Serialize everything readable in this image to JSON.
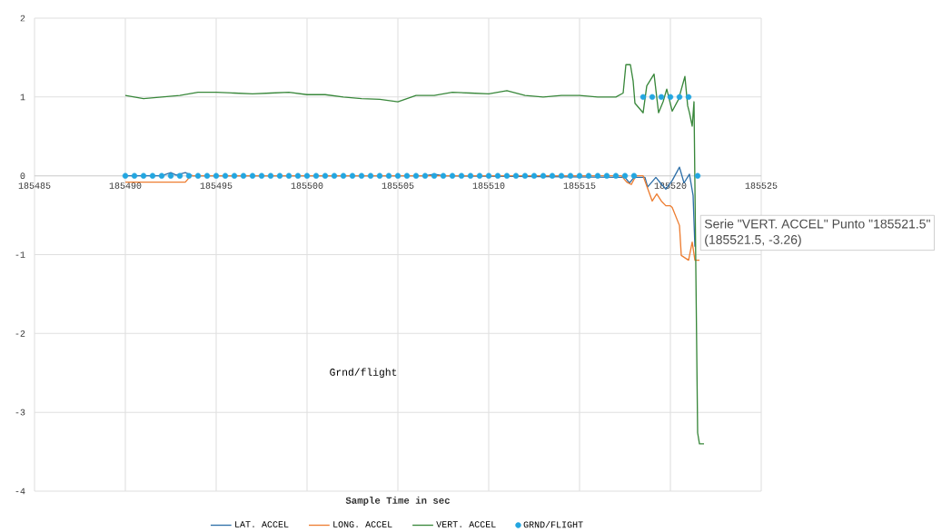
{
  "chart_data": {
    "type": "line",
    "xlabel": "Sample Time in sec",
    "xlim": [
      185485,
      185525
    ],
    "xticks": [
      185485,
      185490,
      185495,
      185500,
      185505,
      185510,
      185515,
      185520,
      185525
    ],
    "ylim": [
      -4,
      2
    ],
    "yticks": [
      -4,
      -3,
      -2,
      -1,
      0,
      1,
      2
    ],
    "grid": true,
    "legend": "bottom",
    "annotations": [
      "Grnd/flight",
      "Serie \"VERT. ACCEL\" Punto \"185521.5\"",
      "(185521.5, -3.26)"
    ],
    "series": [
      {
        "name": "LAT. ACCEL",
        "color": "#2e6fa8",
        "x": [
          185490,
          185492,
          185492.5,
          185492.8,
          185493.3,
          185493.7,
          185506.5,
          185507,
          185507.5,
          185517.5,
          185517.75,
          185518,
          185518.6,
          185518.75,
          185519.2,
          185519.45,
          185519.75,
          185520.1,
          185520.5,
          185520.75,
          185521.05,
          185521.25,
          185521.35
        ],
        "values": [
          0,
          0,
          0.04,
          0.01,
          0.04,
          0,
          0,
          0.02,
          0,
          -0.02,
          -0.09,
          -0.02,
          -0.02,
          -0.14,
          -0.02,
          -0.09,
          -0.17,
          -0.06,
          0.11,
          -0.09,
          0.02,
          -0.25,
          -0.9
        ]
      },
      {
        "name": "LONG. ACCEL",
        "color": "#ed7d31",
        "x": [
          185490,
          185493.3,
          185493.6,
          185517.3,
          185517.6,
          185517.85,
          185518.1,
          185518.5,
          185519,
          185519.25,
          185519.5,
          185519.75,
          185520,
          185520.1,
          185520.5,
          185520.6,
          185521,
          185521.2,
          185521.35,
          185521.6
        ],
        "values": [
          -0.08,
          -0.08,
          0,
          0,
          -0.08,
          -0.11,
          0,
          0,
          -0.32,
          -0.23,
          -0.32,
          -0.38,
          -0.38,
          -0.4,
          -0.63,
          -1.01,
          -1.07,
          -0.84,
          -1.07,
          -1.07
        ]
      },
      {
        "name": "VERT. ACCEL",
        "color": "#38873a",
        "x": [
          185490,
          185491,
          185492,
          185493,
          185494,
          185495,
          185496,
          185497,
          185498,
          185499,
          185500,
          185501,
          185502,
          185503,
          185504,
          185505,
          185506,
          185507,
          185508,
          185509,
          185510,
          185511,
          185512,
          185513,
          185514,
          185515,
          185516,
          185517,
          185517.4,
          185517.55,
          185517.8,
          185517.95,
          185518.05,
          185518.5,
          185518.7,
          185519.1,
          185519.35,
          185519.6,
          185519.8,
          185520.1,
          185520.45,
          185520.8,
          185520.95,
          185521.05,
          185521.2,
          185521.3,
          185521.5,
          185521.6,
          185521.85
        ],
        "values": [
          1.02,
          0.98,
          1.0,
          1.02,
          1.06,
          1.06,
          1.05,
          1.04,
          1.05,
          1.06,
          1.03,
          1.03,
          1.0,
          0.98,
          0.97,
          0.94,
          1.02,
          1.02,
          1.06,
          1.05,
          1.04,
          1.08,
          1.02,
          1.0,
          1.02,
          1.02,
          1.0,
          1.0,
          1.05,
          1.41,
          1.41,
          1.2,
          0.92,
          0.8,
          1.14,
          1.29,
          0.8,
          0.94,
          1.1,
          0.82,
          0.97,
          1.26,
          0.89,
          0.8,
          0.63,
          0.94,
          -3.26,
          -3.4,
          -3.4
        ]
      },
      {
        "name": "GRND/FLIGHT",
        "type": "scatter",
        "color": "#23a6e0",
        "x": [
          185490,
          185490.5,
          185491,
          185491.5,
          185492,
          185492.5,
          185493,
          185493.5,
          185494,
          185494.5,
          185495,
          185495.5,
          185496,
          185496.5,
          185497,
          185497.5,
          185498,
          185498.5,
          185499,
          185499.5,
          185500,
          185500.5,
          185501,
          185501.5,
          185502,
          185502.5,
          185503,
          185503.5,
          185504,
          185504.5,
          185505,
          185505.5,
          185506,
          185506.5,
          185507,
          185507.5,
          185508,
          185508.5,
          185509,
          185509.5,
          185510,
          185510.5,
          185511,
          185511.5,
          185512,
          185512.5,
          185513,
          185513.5,
          185514,
          185514.5,
          185515,
          185515.5,
          185516,
          185516.5,
          185517,
          185517.5,
          185518,
          185518.5,
          185519,
          185519.5,
          185520,
          185520.5,
          185521,
          185521.5
        ],
        "values": [
          0,
          0,
          0,
          0,
          0,
          0,
          0,
          0,
          0,
          0,
          0,
          0,
          0,
          0,
          0,
          0,
          0,
          0,
          0,
          0,
          0,
          0,
          0,
          0,
          0,
          0,
          0,
          0,
          0,
          0,
          0,
          0,
          0,
          0,
          0,
          0,
          0,
          0,
          0,
          0,
          0,
          0,
          0,
          0,
          0,
          0,
          0,
          0,
          0,
          0,
          0,
          0,
          0,
          0,
          0,
          0,
          0,
          1,
          1,
          1,
          1,
          1,
          1,
          0
        ]
      }
    ]
  }
}
